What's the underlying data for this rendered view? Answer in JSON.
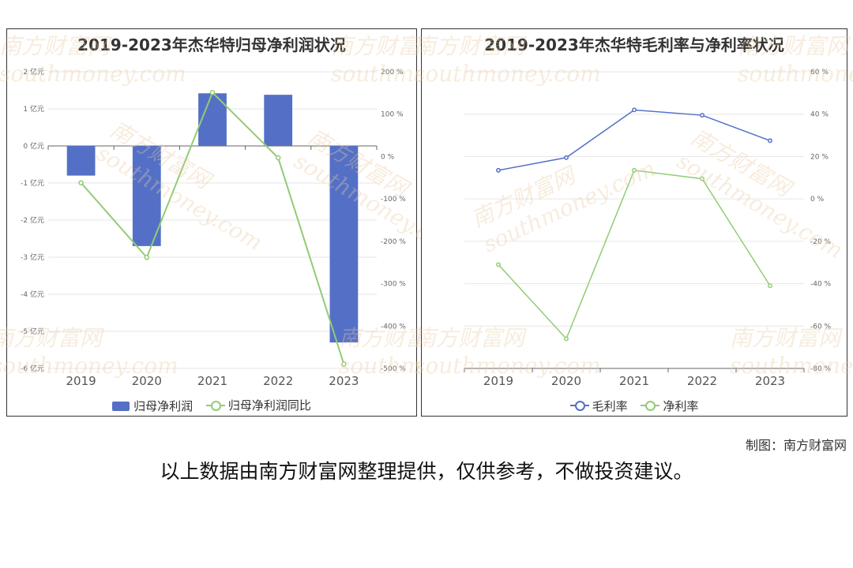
{
  "watermark": {
    "cn": "南方财富网",
    "en": "southmoney.com"
  },
  "colors": {
    "bar": "#5470c6",
    "line_blue": "#5470c6",
    "line_green": "#91cc75",
    "grid": "#e6e6e6"
  },
  "chart_data": [
    {
      "type": "bar",
      "title": "2019-2023年杰华特归母净利润状况",
      "categories": [
        "2019",
        "2020",
        "2021",
        "2022",
        "2023"
      ],
      "left_axis": {
        "ticks": [
          "2 亿元",
          "1 亿元",
          "0 亿元",
          "-1 亿元",
          "-2 亿元",
          "-3 亿元",
          "-4 亿元",
          "-5 亿元",
          "-6 亿元"
        ],
        "ylim": [
          -6,
          2
        ]
      },
      "right_axis": {
        "ticks": [
          "200 %",
          "100 %",
          "0 %",
          "-100 %",
          "-200 %",
          "-300 %",
          "-400 %",
          "-500 %"
        ],
        "ylim": [
          -500,
          200
        ]
      },
      "series": [
        {
          "name": "归母净利润",
          "type": "bar",
          "axis": "left",
          "values": [
            -0.8,
            -2.7,
            1.42,
            1.38,
            -5.3
          ]
        },
        {
          "name": "归母净利润同比",
          "type": "line",
          "axis": "right",
          "values": [
            -62,
            -238,
            151,
            -3,
            -490
          ]
        }
      ],
      "legend": [
        "归母净利润",
        "归母净利润同比"
      ]
    },
    {
      "type": "line",
      "title": "2019-2023年杰华特毛利率与净利率状况",
      "categories": [
        "2019",
        "2020",
        "2021",
        "2022",
        "2023"
      ],
      "right_axis": {
        "ticks": [
          "60 %",
          "40 %",
          "20 %",
          "0 %",
          "-20 %",
          "-40 %",
          "-60 %",
          "-80 %"
        ],
        "ylim": [
          -80,
          60
        ]
      },
      "series": [
        {
          "name": "毛利率",
          "type": "line",
          "values": [
            13.5,
            19.5,
            42,
            39.5,
            27.5
          ]
        },
        {
          "name": "净利率",
          "type": "line",
          "values": [
            -31,
            -66,
            13.5,
            9.5,
            -41
          ]
        }
      ],
      "legend": [
        "毛利率",
        "净利率"
      ]
    }
  ],
  "footer": {
    "credit": "制图：南方财富网",
    "disclaimer": "以上数据由南方财富网整理提供，仅供参考，不做投资建议。"
  }
}
